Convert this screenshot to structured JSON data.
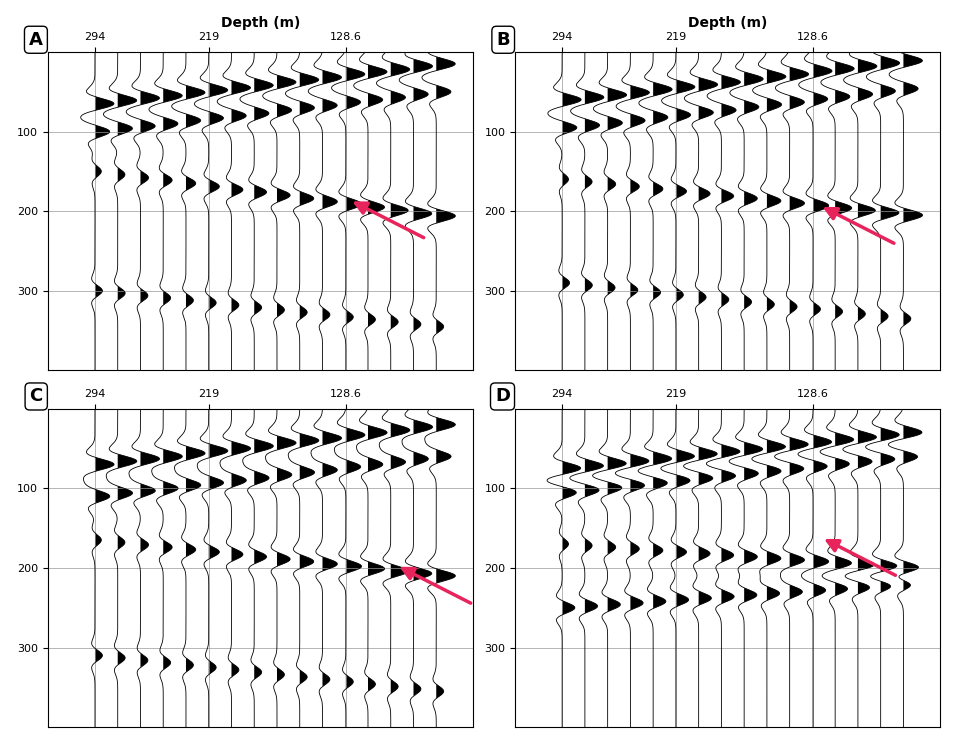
{
  "chart_data": [
    {
      "type": "wiggle",
      "label": "A",
      "xlabel": "Depth (m)",
      "xlim": [
        325,
        45
      ],
      "xticks": [
        294,
        219,
        128.6
      ],
      "ylim": [
        400,
        0
      ],
      "yticks": [
        100,
        200,
        300
      ],
      "grid": true,
      "depths": [
        294,
        279,
        264,
        249,
        234,
        219,
        204,
        189,
        174,
        159,
        144,
        128.6,
        114,
        99,
        84,
        69
      ],
      "events": [
        {
          "times": [
            65,
            61,
            58,
            55,
            51,
            48,
            45,
            42,
            38,
            35,
            32,
            28,
            25,
            22,
            18,
            15
          ],
          "amplitudes": [
            0.9,
            0.9,
            0.9,
            0.9,
            0.9,
            0.9,
            0.9,
            0.9,
            0.9,
            0.9,
            0.9,
            0.9,
            0.9,
            0.9,
            0.9,
            0.9
          ]
        },
        {
          "times": [
            100,
            96,
            93,
            90,
            86,
            83,
            80,
            77,
            73,
            70,
            67,
            63,
            60,
            57,
            53,
            50
          ],
          "amplitudes": [
            0.7,
            0.7,
            0.7,
            0.7,
            0.7,
            0.7,
            0.7,
            0.7,
            0.7,
            0.7,
            0.7,
            0.7,
            0.7,
            0.7,
            0.7,
            0.7
          ]
        },
        {
          "times": [
            150,
            154,
            158,
            161,
            165,
            169,
            173,
            176,
            180,
            184,
            188,
            191,
            195,
            199,
            203,
            206
          ],
          "amplitudes": [
            0.3,
            0.34,
            0.38,
            0.42,
            0.46,
            0.5,
            0.54,
            0.58,
            0.62,
            0.66,
            0.7,
            0.74,
            0.78,
            0.82,
            0.86,
            0.9
          ]
        },
        {
          "times": [
            300,
            303,
            306,
            309,
            312,
            315,
            318,
            321,
            324,
            327,
            330,
            333,
            336,
            339,
            342,
            345
          ],
          "amplitudes": [
            0.35,
            0.35,
            0.35,
            0.35,
            0.35,
            0.35,
            0.35,
            0.35,
            0.35,
            0.35,
            0.35,
            0.35,
            0.35,
            0.35,
            0.35,
            0.35
          ]
        }
      ],
      "arrow": {
        "depth": 126,
        "time": 186,
        "color": "#e8245c"
      }
    },
    {
      "type": "wiggle",
      "label": "B",
      "xlabel": "Depth (m)",
      "xlim": [
        325,
        45
      ],
      "xticks": [
        294,
        219,
        128.6
      ],
      "ylim": [
        400,
        0
      ],
      "yticks": [
        100,
        200,
        300
      ],
      "grid": true,
      "depths": [
        294,
        279,
        264,
        249,
        234,
        219,
        204,
        189,
        174,
        159,
        144,
        128.6,
        114,
        99,
        84,
        69
      ],
      "events": [
        {
          "times": [
            60,
            57,
            54,
            51,
            47,
            44,
            41,
            38,
            34,
            31,
            28,
            24,
            21,
            18,
            14,
            11
          ],
          "amplitudes": [
            0.9,
            0.9,
            0.9,
            0.9,
            0.9,
            0.9,
            0.9,
            0.9,
            0.9,
            0.9,
            0.9,
            0.9,
            0.9,
            0.9,
            0.9,
            0.9
          ]
        },
        {
          "times": [
            95,
            92,
            89,
            86,
            82,
            79,
            76,
            73,
            69,
            66,
            63,
            59,
            56,
            53,
            49,
            46
          ],
          "amplitudes": [
            0.7,
            0.7,
            0.7,
            0.7,
            0.7,
            0.7,
            0.7,
            0.7,
            0.7,
            0.7,
            0.7,
            0.7,
            0.7,
            0.7,
            0.7,
            0.7
          ]
        },
        {
          "times": [
            160,
            163,
            166,
            169,
            172,
            175,
            178,
            181,
            184,
            187,
            190,
            193,
            196,
            199,
            202,
            205
          ],
          "amplitudes": [
            0.3,
            0.34,
            0.38,
            0.42,
            0.46,
            0.5,
            0.54,
            0.58,
            0.62,
            0.66,
            0.7,
            0.74,
            0.78,
            0.82,
            0.86,
            0.9
          ]
        },
        {
          "times": [
            290,
            293,
            296,
            299,
            302,
            305,
            308,
            311,
            314,
            317,
            320,
            323,
            326,
            329,
            332,
            335
          ],
          "amplitudes": [
            0.35,
            0.35,
            0.35,
            0.35,
            0.35,
            0.35,
            0.35,
            0.35,
            0.35,
            0.35,
            0.35,
            0.35,
            0.35,
            0.35,
            0.35,
            0.35
          ]
        }
      ],
      "arrow": {
        "depth": 124,
        "time": 193,
        "color": "#e8245c"
      }
    },
    {
      "type": "wiggle",
      "label": "C",
      "xlim": [
        325,
        45
      ],
      "xticks": [
        294,
        219,
        128.6
      ],
      "ylim": [
        400,
        0
      ],
      "yticks": [
        100,
        200,
        300
      ],
      "grid": true,
      "depths": [
        294,
        279,
        264,
        249,
        234,
        219,
        204,
        189,
        174,
        159,
        144,
        128.6,
        114,
        99,
        84,
        69
      ],
      "events": [
        {
          "times": [
            70,
            66,
            63,
            60,
            56,
            53,
            50,
            47,
            43,
            40,
            37,
            33,
            30,
            27,
            23,
            20
          ],
          "amplitudes": [
            0.9,
            0.9,
            0.9,
            0.9,
            0.9,
            0.9,
            0.9,
            0.9,
            0.9,
            0.9,
            0.9,
            0.9,
            0.9,
            0.9,
            0.9,
            0.9
          ]
        },
        {
          "times": [
            110,
            106,
            103,
            100,
            96,
            93,
            90,
            87,
            83,
            80,
            77,
            73,
            70,
            67,
            63,
            60
          ],
          "amplitudes": [
            0.7,
            0.7,
            0.7,
            0.7,
            0.7,
            0.7,
            0.7,
            0.7,
            0.7,
            0.7,
            0.7,
            0.7,
            0.7,
            0.7,
            0.7,
            0.7
          ]
        },
        {
          "times": [
            165,
            168,
            171,
            174,
            177,
            180,
            183,
            186,
            189,
            192,
            195,
            198,
            201,
            204,
            207,
            210
          ],
          "amplitudes": [
            0.3,
            0.34,
            0.38,
            0.42,
            0.46,
            0.5,
            0.54,
            0.58,
            0.62,
            0.66,
            0.7,
            0.74,
            0.78,
            0.82,
            0.86,
            0.9
          ]
        },
        {
          "times": [
            310,
            313,
            316,
            319,
            322,
            325,
            328,
            331,
            334,
            337,
            340,
            343,
            346,
            349,
            352,
            355
          ],
          "amplitudes": [
            0.35,
            0.35,
            0.35,
            0.35,
            0.35,
            0.35,
            0.35,
            0.35,
            0.35,
            0.35,
            0.35,
            0.35,
            0.35,
            0.35,
            0.35,
            0.35
          ]
        }
      ],
      "arrow": {
        "depth": 95,
        "time": 197,
        "color": "#e8245c"
      }
    },
    {
      "type": "wiggle",
      "label": "D",
      "xlim": [
        325,
        45
      ],
      "xticks": [
        294,
        219,
        128.6
      ],
      "ylim": [
        400,
        0
      ],
      "yticks": [
        100,
        200,
        300
      ],
      "grid": true,
      "depths": [
        294,
        279,
        264,
        249,
        234,
        219,
        204,
        189,
        174,
        159,
        144,
        128.6,
        114,
        99,
        84,
        69
      ],
      "events": [
        {
          "times": [
            75,
            72,
            69,
            66,
            63,
            60,
            57,
            54,
            51,
            48,
            45,
            42,
            39,
            36,
            33,
            30
          ],
          "amplitudes": [
            0.9,
            0.9,
            0.9,
            0.9,
            0.9,
            0.9,
            0.9,
            0.9,
            0.9,
            0.9,
            0.9,
            0.9,
            0.9,
            0.9,
            0.9,
            0.9
          ]
        },
        {
          "times": [
            105,
            102,
            99,
            96,
            93,
            90,
            87,
            84,
            81,
            78,
            75,
            72,
            69,
            66,
            63,
            60
          ],
          "amplitudes": [
            0.7,
            0.7,
            0.7,
            0.7,
            0.7,
            0.7,
            0.7,
            0.7,
            0.7,
            0.7,
            0.7,
            0.7,
            0.7,
            0.7,
            0.7,
            0.7
          ]
        },
        {
          "times": [
            250,
            248,
            246,
            244,
            242,
            240,
            238,
            236,
            234,
            232,
            230,
            228,
            226,
            224,
            222,
            220
          ],
          "amplitudes": [
            0.6,
            0.6,
            0.6,
            0.6,
            0.6,
            0.6,
            0.6,
            0.6,
            0.6,
            0.6,
            0.6,
            0.6,
            0.6,
            0.6,
            0.6,
            0.6
          ]
        },
        {
          "times": [
            170,
            172,
            174,
            176,
            178,
            180,
            182,
            184,
            186,
            188,
            190,
            192,
            194,
            196,
            198,
            200
          ],
          "amplitudes": [
            0.3,
            0.34,
            0.38,
            0.42,
            0.46,
            0.5,
            0.54,
            0.58,
            0.62,
            0.66,
            0.7,
            0.74,
            0.78,
            0.82,
            0.86,
            0.9
          ]
        }
      ],
      "arrow": {
        "depth": 123,
        "time": 162,
        "color": "#e8245c"
      }
    }
  ]
}
